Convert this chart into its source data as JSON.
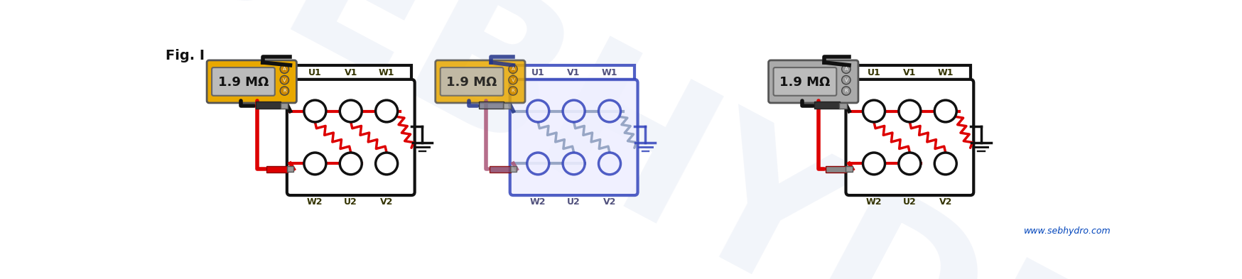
{
  "fig_label": "Fig. I",
  "meter_value": "1.9 MΩ",
  "bg_color": "#FFFFFF",
  "watermark_text": "SEBHYDR",
  "watermark_color": "#AABBDD",
  "website": "www.sebhydro.com",
  "website_color": "#0044BB",
  "panels": [
    {
      "meter_style": "yellow",
      "box_outline": "#111111",
      "box_fill": "#FFFFFF",
      "label_color": "#333300",
      "zz_color": "#DD0000",
      "wire_black": "#111111",
      "wire_red": "#DD0000",
      "red_fill": "#DD0000",
      "black_fill": "#333333",
      "ground_color": "#111111",
      "alpha": 1.0
    },
    {
      "meter_style": "yellow",
      "box_outline": "#3344BB",
      "box_fill": "#EEEEFF",
      "label_color": "#333366",
      "zz_color": "#8899BB",
      "wire_black": "#223388",
      "wire_red": "#AA5577",
      "red_fill": "#884466",
      "black_fill": "#777788",
      "ground_color": "#3344BB",
      "alpha": 0.85
    },
    {
      "meter_style": "gray",
      "box_outline": "#111111",
      "box_fill": "#FFFFFF",
      "label_color": "#333300",
      "zz_color": "#DD0000",
      "wire_black": "#111111",
      "wire_red": "#DD0000",
      "red_fill": "#888888",
      "black_fill": "#333333",
      "ground_color": "#111111",
      "alpha": 1.0
    }
  ],
  "meter_yellow_frame": "#E8A800",
  "meter_gray_frame": "#AAAAAA",
  "meter_screen": "#BBBBBB",
  "meter_btn": "#CC8800",
  "meter_btn_gray": "#999999",
  "top_labels": [
    "U1",
    "V1",
    "W1"
  ],
  "bot_labels": [
    "W2",
    "U2",
    "V2"
  ]
}
